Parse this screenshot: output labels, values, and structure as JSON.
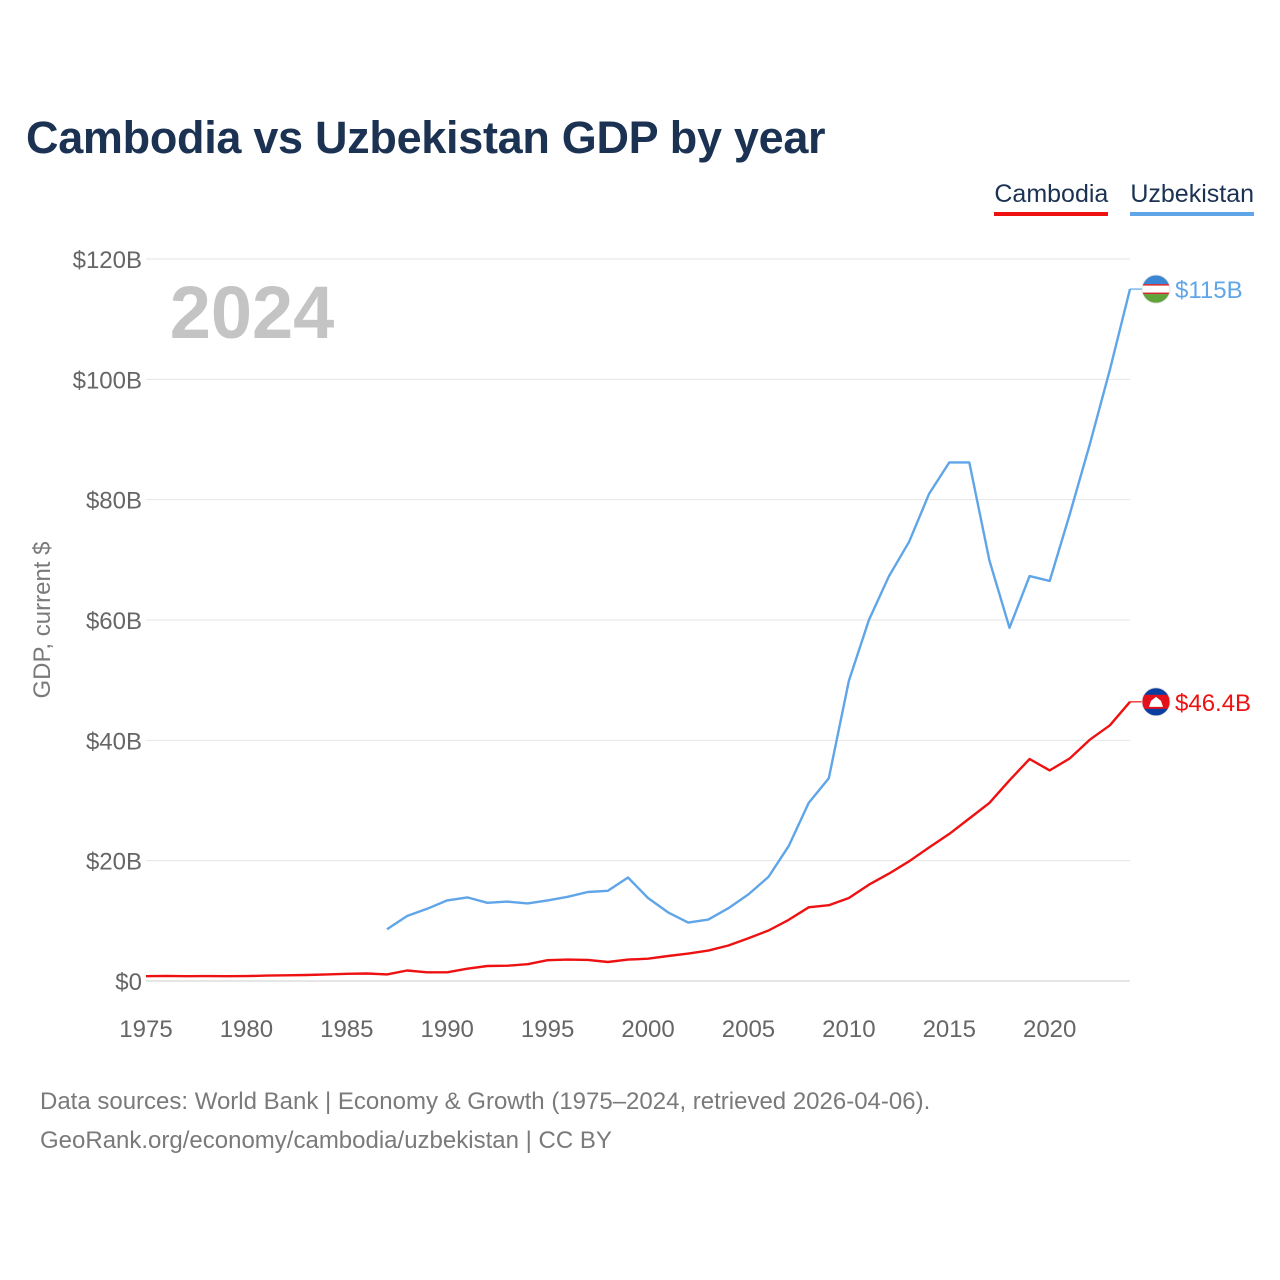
{
  "title": "Cambodia vs Uzbekistan GDP by year",
  "legend": [
    {
      "name": "Cambodia",
      "color": "#ee1111"
    },
    {
      "name": "Uzbekistan",
      "color": "#5fa5e8"
    }
  ],
  "year_watermark": "2024",
  "source_line1": "Data sources: World Bank | Economy & Growth (1975–2024, retrieved 2026-04-06).",
  "source_line2": "GeoRank.org/economy/cambodia/uzbekistan | CC BY",
  "chart_data": {
    "type": "line",
    "title": "Cambodia vs Uzbekistan GDP by year",
    "xlabel": "",
    "ylabel": "GDP, current $",
    "xlim": [
      1975,
      2024
    ],
    "ylim": [
      0,
      120
    ],
    "x_ticks": [
      1975,
      1980,
      1985,
      1990,
      1995,
      2000,
      2005,
      2010,
      2015,
      2020
    ],
    "y_ticks": [
      0,
      20,
      40,
      60,
      80,
      100,
      120
    ],
    "y_tick_labels": [
      "$0",
      "$20B",
      "$40B",
      "$60B",
      "$80B",
      "$100B",
      "$120B"
    ],
    "units": "billions of current US$",
    "series": [
      {
        "name": "Cambodia",
        "color": "#ee1111",
        "end_label": "$46.4B",
        "start_year": 1975,
        "values": [
          0.8,
          0.85,
          0.8,
          0.82,
          0.8,
          0.82,
          0.9,
          0.95,
          1.0,
          1.1,
          1.2,
          1.25,
          1.1,
          1.75,
          1.45,
          1.45,
          2.05,
          2.5,
          2.55,
          2.8,
          3.45,
          3.55,
          3.5,
          3.15,
          3.55,
          3.7,
          4.15,
          4.55,
          5.05,
          5.9,
          7.1,
          8.4,
          10.15,
          12.25,
          12.6,
          13.8,
          16.0,
          17.85,
          19.9,
          22.2,
          24.45,
          27.0,
          29.6,
          33.35,
          36.9,
          35.0,
          37.0,
          40.1,
          42.5,
          46.4
        ]
      },
      {
        "name": "Uzbekistan",
        "color": "#5fa5e8",
        "end_label": "$115B",
        "start_year": 1987,
        "values": [
          8.6,
          10.8,
          12.0,
          13.4,
          13.9,
          13.0,
          13.2,
          12.9,
          13.4,
          14.0,
          14.8,
          15.0,
          17.2,
          13.8,
          11.4,
          9.7,
          10.2,
          12.1,
          14.4,
          17.3,
          22.4,
          29.6,
          33.7,
          49.9,
          60.0,
          67.3,
          73.0,
          81.0,
          86.2,
          86.2,
          69.9,
          58.7,
          67.3,
          66.5,
          77.6,
          89.2,
          101.6,
          115.0
        ]
      }
    ]
  }
}
